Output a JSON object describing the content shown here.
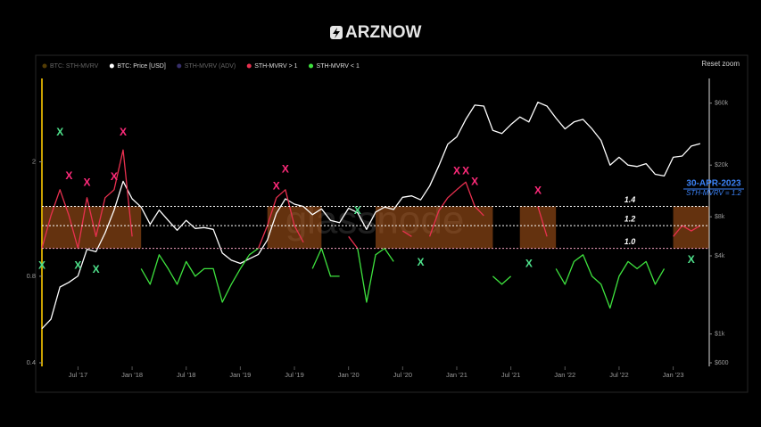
{
  "brand": "ARZNOW",
  "reset_button": "Reset zoom",
  "chart_data": {
    "type": "line",
    "log_scale": true,
    "watermark": "glassnode",
    "x": [
      "2017-03",
      "2017-04",
      "2017-05",
      "2017-06",
      "2017-07",
      "2017-08",
      "2017-09",
      "2017-10",
      "2017-11",
      "2017-12",
      "2018-01",
      "2018-02",
      "2018-03",
      "2018-04",
      "2018-05",
      "2018-06",
      "2018-07",
      "2018-08",
      "2018-09",
      "2018-10",
      "2018-11",
      "2018-12",
      "2019-01",
      "2019-02",
      "2019-03",
      "2019-04",
      "2019-05",
      "2019-06",
      "2019-07",
      "2019-08",
      "2019-09",
      "2019-10",
      "2019-11",
      "2019-12",
      "2020-01",
      "2020-02",
      "2020-03",
      "2020-04",
      "2020-05",
      "2020-06",
      "2020-07",
      "2020-08",
      "2020-09",
      "2020-10",
      "2020-11",
      "2020-12",
      "2021-01",
      "2021-02",
      "2021-03",
      "2021-04",
      "2021-05",
      "2021-06",
      "2021-07",
      "2021-08",
      "2021-09",
      "2021-10",
      "2021-11",
      "2021-12",
      "2022-01",
      "2022-02",
      "2022-03",
      "2022-04",
      "2022-05",
      "2022-06",
      "2022-07",
      "2022-08",
      "2022-09",
      "2022-10",
      "2022-11",
      "2022-12",
      "2023-01",
      "2023-02",
      "2023-03",
      "2023-04"
    ],
    "xlim": [
      "2017-03",
      "2023-05"
    ],
    "xticks": [
      {
        "value": "2017-07",
        "label": "Jul '17"
      },
      {
        "value": "2018-01",
        "label": "Jan '18"
      },
      {
        "value": "2018-07",
        "label": "Jul '18"
      },
      {
        "value": "2019-01",
        "label": "Jan '19"
      },
      {
        "value": "2019-07",
        "label": "Jul '19"
      },
      {
        "value": "2020-01",
        "label": "Jan '20"
      },
      {
        "value": "2020-07",
        "label": "Jul '20"
      },
      {
        "value": "2021-01",
        "label": "Jan '21"
      },
      {
        "value": "2021-07",
        "label": "Jul '21"
      },
      {
        "value": "2022-01",
        "label": "Jan '22"
      },
      {
        "value": "2022-07",
        "label": "Jul '22"
      },
      {
        "value": "2023-01",
        "label": "Jan '23"
      }
    ],
    "ylim": [
      0.4,
      3.9
    ],
    "yticks": [
      0.4,
      0.8,
      2
    ],
    "y2lim": [
      600,
      93000
    ],
    "y2ticks": [
      {
        "value": 600,
        "label": "$600"
      },
      {
        "value": 1000,
        "label": "$1k"
      },
      {
        "value": 4000,
        "label": "$4k"
      },
      {
        "value": 8000,
        "label": "$8k"
      },
      {
        "value": 20000,
        "label": "$20k"
      },
      {
        "value": 60000,
        "label": "$60k"
      }
    ],
    "legend_hidden": [
      {
        "name": "BTC: STH-MVRV",
        "color": "#b8860b"
      },
      {
        "name": "STH-MVRV (ADV)",
        "color": "#7b68ee"
      }
    ],
    "series": [
      {
        "name": "BTC: Price [USD]",
        "color": "#ffffff",
        "axis": "y2",
        "values": [
          1100,
          1300,
          2300,
          2500,
          2800,
          4500,
          4300,
          6000,
          9000,
          15000,
          11000,
          9500,
          7000,
          9000,
          7500,
          6300,
          7500,
          6500,
          6600,
          6400,
          4200,
          3700,
          3500,
          3800,
          4100,
          5300,
          8500,
          11000,
          10000,
          9600,
          8300,
          9200,
          7500,
          7200,
          9300,
          8600,
          6400,
          8700,
          9500,
          9100,
          11300,
          11600,
          10800,
          13800,
          19700,
          29000,
          33000,
          45000,
          58000,
          57000,
          37000,
          35000,
          41000,
          47000,
          43000,
          61000,
          57000,
          46000,
          38000,
          43000,
          45000,
          38000,
          31000,
          20000,
          23000,
          20000,
          19500,
          20500,
          17000,
          16500,
          23000,
          23500,
          28000,
          29300
        ]
      },
      {
        "name": "STH-MVRV > 1",
        "color": "#e8304f",
        "values": [
          1.0,
          1.3,
          1.6,
          1.3,
          1.0,
          1.5,
          1.1,
          1.5,
          1.6,
          2.2,
          1.1,
          null,
          null,
          null,
          null,
          null,
          null,
          null,
          null,
          null,
          null,
          null,
          null,
          null,
          1.0,
          1.2,
          1.5,
          1.6,
          1.2,
          1.05,
          null,
          1.0,
          null,
          null,
          1.1,
          1.0,
          null,
          null,
          1.0,
          null,
          1.15,
          1.1,
          null,
          1.1,
          1.35,
          1.5,
          1.6,
          1.7,
          1.4,
          1.3,
          null,
          null,
          null,
          1.1,
          null,
          1.4,
          1.1,
          null,
          null,
          null,
          null,
          null,
          null,
          null,
          null,
          null,
          null,
          null,
          null,
          null,
          1.1,
          1.2,
          1.15,
          1.2
        ]
      },
      {
        "name": "STH-MVRV < 1",
        "color": "#3ee23e",
        "values": [
          1.0,
          null,
          null,
          null,
          1.0,
          null,
          null,
          null,
          null,
          null,
          null,
          0.85,
          0.75,
          0.95,
          0.85,
          0.75,
          0.9,
          0.8,
          0.85,
          0.85,
          0.65,
          0.75,
          0.85,
          0.95,
          1.0,
          null,
          null,
          null,
          null,
          null,
          0.85,
          1.0,
          0.8,
          0.8,
          null,
          1.0,
          0.65,
          0.95,
          1.0,
          0.9,
          null,
          null,
          0.9,
          null,
          null,
          null,
          null,
          null,
          null,
          null,
          0.8,
          0.75,
          0.8,
          null,
          0.95,
          null,
          null,
          0.85,
          0.75,
          0.9,
          0.95,
          0.8,
          0.75,
          0.62,
          0.8,
          0.9,
          0.85,
          0.9,
          0.75,
          0.85,
          null,
          null,
          null,
          null
        ]
      }
    ],
    "reference_lines": [
      1.4,
      1.2,
      {
        "value": 1,
        "label": "1.0"
      }
    ],
    "zones": {
      "color": "#c8641e",
      "ylim": [
        1,
        1.4
      ],
      "ranges": [
        [
          "2017-03",
          "2018-02"
        ],
        [
          "2019-04",
          "2019-10"
        ],
        [
          "2020-04",
          "2021-05"
        ],
        [
          "2021-08",
          "2021-12"
        ],
        [
          "2023-01",
          "2023-05"
        ]
      ]
    },
    "markers": [
      {
        "x": "2017-06",
        "y": 1.78,
        "label": "X",
        "color": "#ff2a7a"
      },
      {
        "x": "2017-08",
        "y": 1.69,
        "label": "X",
        "color": "#ff2a7a"
      },
      {
        "x": "2017-11",
        "y": 1.77,
        "label": "X",
        "color": "#ff2a7a"
      },
      {
        "x": "2017-12",
        "y": 2.53,
        "label": "X",
        "color": "#ff2a7a"
      },
      {
        "x": "2019-05",
        "y": 1.64,
        "label": "X",
        "color": "#ff2a7a"
      },
      {
        "x": "2019-06",
        "y": 1.88,
        "label": "X",
        "color": "#ff2a7a"
      },
      {
        "x": "2021-01",
        "y": 1.85,
        "label": "X",
        "color": "#ff2a7a"
      },
      {
        "x": "2021-02",
        "y": 1.85,
        "label": "X",
        "color": "#ff2a7a"
      },
      {
        "x": "2021-03",
        "y": 1.7,
        "label": "X",
        "color": "#ff2a7a"
      },
      {
        "x": "2021-10",
        "y": 1.58,
        "label": "X",
        "color": "#ff2a7a"
      },
      {
        "x": "2017-05",
        "y": 2.53,
        "label": "X",
        "color": "#4ee08a"
      },
      {
        "x": "2017-03",
        "y": 0.87,
        "label": "X",
        "color": "#4ee08a"
      },
      {
        "x": "2017-07",
        "y": 0.87,
        "label": "X",
        "color": "#4ee08a"
      },
      {
        "x": "2017-09",
        "y": 0.84,
        "label": "X",
        "color": "#4ee08a"
      },
      {
        "x": "2020-02",
        "y": 1.35,
        "label": "X",
        "color": "#4ee08a"
      },
      {
        "x": "2020-09",
        "y": 0.89,
        "label": "X",
        "color": "#4ee08a"
      },
      {
        "x": "2021-09",
        "y": 0.88,
        "label": "X",
        "color": "#4ee08a"
      },
      {
        "x": "2023-03",
        "y": 0.91,
        "label": "X",
        "color": "#4ee08a"
      }
    ],
    "annotation": {
      "date": "30-APR-2023",
      "text": "STH-MVRV = 1.2",
      "color": "#3b82f6"
    }
  }
}
